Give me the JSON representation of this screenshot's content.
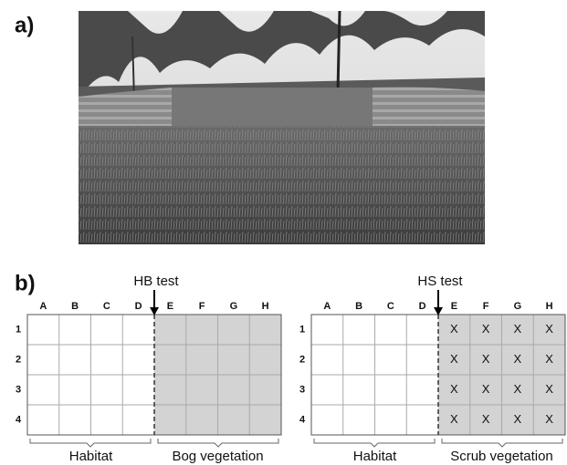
{
  "panel_a": {
    "label": "a)"
  },
  "panel_b": {
    "label": "b)",
    "grids": [
      {
        "test_label": "HB test",
        "columns": [
          "A",
          "B",
          "C",
          "D",
          "E",
          "F",
          "G",
          "H"
        ],
        "rows": [
          "1",
          "2",
          "3",
          "4"
        ],
        "left_label": "Habitat",
        "right_label": "Bog vegetation",
        "marks": []
      },
      {
        "test_label": "HS test",
        "columns": [
          "A",
          "B",
          "C",
          "D",
          "E",
          "F",
          "G",
          "H"
        ],
        "rows": [
          "1",
          "2",
          "3",
          "4"
        ],
        "left_label": "Habitat",
        "right_label": "Scrub vegetation",
        "marks": [
          [
            "X",
            "X",
            "X",
            "X"
          ],
          [
            "X",
            "X",
            "X",
            "X"
          ],
          [
            "X",
            "X",
            "X",
            "X"
          ],
          [
            "X",
            "X",
            "X",
            "X"
          ]
        ]
      }
    ]
  }
}
